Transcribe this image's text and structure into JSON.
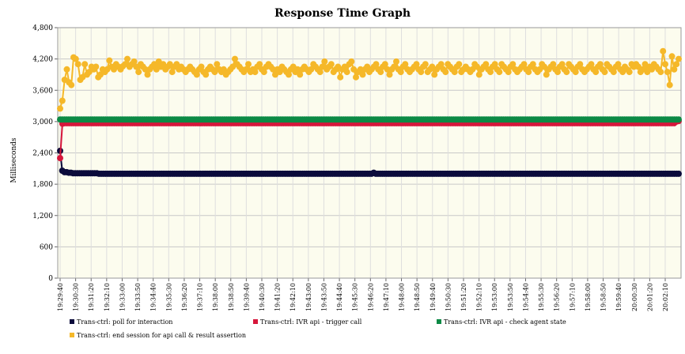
{
  "chart_data": {
    "type": "line",
    "title": "Response Time Graph",
    "ylabel": "Milliseconds",
    "xlabel": "",
    "ylim": [
      0,
      4800
    ],
    "yticks": [
      0,
      600,
      1200,
      1800,
      2400,
      3000,
      3600,
      4200,
      4800
    ],
    "ytick_labels": [
      "0",
      "600",
      "1,200",
      "1,800",
      "2,400",
      "3,000",
      "3,600",
      "4,200",
      "4,800"
    ],
    "x_tick_labels": [
      "19:29:40",
      "19:30:30",
      "19:31:20",
      "19:32:10",
      "19:33:00",
      "19:33:50",
      "19:34:40",
      "19:35:30",
      "19:36:20",
      "19:37:10",
      "19:38:00",
      "19:38:50",
      "19:39:40",
      "19:40:30",
      "19:41:20",
      "19:42:10",
      "19:43:00",
      "19:43:50",
      "19:44:40",
      "19:45:30",
      "19:46:20",
      "19:47:10",
      "19:48:00",
      "19:48:50",
      "19:49:40",
      "19:50:30",
      "19:51:20",
      "19:52:10",
      "19:53:00",
      "19:53:50",
      "19:54:40",
      "19:55:30",
      "19:56:20",
      "19:57:10",
      "19:58:00",
      "19:58:50",
      "19:59:40",
      "20:00:30",
      "20:01:20",
      "20:02:10"
    ],
    "grid": true,
    "legend_position": "bottom",
    "series": [
      {
        "name": "Trans-ctrl: poll for interaction",
        "color": "#0b0b3b",
        "values": [
          2440,
          2060,
          2030,
          2030,
          2020,
          2020,
          2010,
          2010,
          2010,
          2010,
          2010,
          2010,
          2010,
          2010,
          2010,
          2010,
          2010,
          2010,
          2000,
          2000,
          2000,
          2000,
          2000,
          2000,
          2000,
          2000,
          2000,
          2000,
          2000,
          2000,
          2000,
          2000,
          2000,
          2000,
          2000,
          2000,
          2000,
          2000,
          2000,
          2000,
          2000,
          2000,
          2000,
          2000,
          2000,
          2000,
          2000,
          2000,
          2000,
          2000,
          2000,
          2000,
          2000,
          2000,
          2000,
          2000,
          2000,
          2000,
          2000,
          2000,
          2000,
          2000,
          2000,
          2000,
          2000,
          2000,
          2000,
          2000,
          2000,
          2000,
          2000,
          2000,
          2000,
          2000,
          2000,
          2000,
          2000,
          2000,
          2000,
          2000,
          2000,
          2000,
          2000,
          2000,
          2000,
          2000,
          2000,
          2000,
          2000,
          2000,
          2000,
          2000,
          2000,
          2000,
          2000,
          2000,
          2000,
          2000,
          2000,
          2000,
          2000,
          2000,
          2000,
          2000,
          2000,
          2000,
          2000,
          2000,
          2000,
          2000,
          2000,
          2000,
          2000,
          2000,
          2000,
          2000,
          2000,
          2000,
          2000,
          2000,
          2000,
          2000,
          2000,
          2000,
          2000,
          2000,
          2000,
          2000,
          2000,
          2000,
          2000,
          2000,
          2000,
          2000,
          2000,
          2000,
          2000,
          2000,
          2000,
          2000,
          2000,
          2000,
          2000,
          2000,
          2000,
          2020,
          2000,
          2000,
          2000,
          2000,
          2000,
          2000,
          2000,
          2000,
          2000,
          2000,
          2000,
          2000,
          2000,
          2000,
          2000,
          2000,
          2000,
          2000,
          2000,
          2000,
          2000,
          2000,
          2000,
          2000,
          2000,
          2000,
          2000,
          2000,
          2000,
          2000,
          2000,
          2000,
          2000,
          2000,
          2000,
          2000,
          2000,
          2000,
          2000,
          2000,
          2000,
          2000,
          2000,
          2000,
          2000,
          2000,
          2000,
          2000,
          2000,
          2000,
          2000,
          2000,
          2000,
          2000,
          2000,
          2000,
          2000,
          2000,
          2000,
          2000,
          2000,
          2000,
          2000,
          2000,
          2000,
          2000,
          2000,
          2000,
          2000,
          2000,
          2000,
          2000,
          2000,
          2000,
          2000,
          2000,
          2000,
          2000,
          2000,
          2000,
          2000,
          2000,
          2000,
          2000,
          2000,
          2000,
          2000,
          2000,
          2000,
          2000,
          2000,
          2000,
          2000,
          2000,
          2000,
          2000,
          2000,
          2000,
          2000,
          2000,
          2000,
          2000,
          2000,
          2000,
          2000,
          2000,
          2000,
          2000,
          2000,
          2000,
          2000,
          2000,
          2000,
          2000,
          2000,
          2000,
          2000,
          2000,
          2000,
          2000,
          2000,
          2000,
          2000,
          2000,
          2000,
          2000,
          2000,
          2000,
          2000,
          2000,
          2000,
          2000,
          2000,
          2000,
          2000,
          2000,
          2000,
          2000,
          2000,
          2000,
          2000
        ]
      },
      {
        "name": "Trans-ctrl: IVR api - trigger call",
        "color": "#d6163b",
        "values": [
          2300,
          2960,
          2970,
          2970,
          2970,
          2970,
          2970,
          2970,
          2970,
          2970,
          2970,
          2970,
          2970,
          2970,
          2970,
          2970,
          2970,
          2970,
          2970,
          2970,
          2970,
          2970,
          2970,
          2970,
          2970,
          2970,
          2970,
          2970,
          2970,
          2970,
          2970,
          2970,
          2970,
          2970,
          2970,
          2970,
          2970,
          2970,
          2970,
          2970,
          2970,
          2970,
          2970,
          2970,
          2970,
          2970,
          2970,
          2970,
          2970,
          2970,
          2970,
          2970,
          2970,
          2970,
          2970,
          2970,
          2970,
          2970,
          2970,
          2970,
          2970,
          2970,
          2970,
          2970,
          2970,
          2970,
          2970,
          2970,
          2970,
          2970,
          2970,
          2970,
          2970,
          2970,
          2970,
          2970,
          2970,
          2970,
          2970,
          2970,
          2970,
          2970,
          2970,
          2970,
          2970,
          2970,
          2970,
          2970,
          2970,
          2970,
          2970,
          2970,
          2970,
          2970,
          2970,
          2970,
          2970,
          2970,
          2970,
          2970,
          2970,
          2970,
          2970,
          2970,
          2970,
          2970,
          2970,
          2970,
          2970,
          2970,
          2970,
          2970,
          2970,
          2970,
          2970,
          2970,
          2970,
          2970,
          2970,
          2970,
          2970,
          2970,
          2970,
          2970,
          2970,
          2970,
          2970,
          2970,
          2970,
          2970,
          2970,
          2970,
          2970,
          2970,
          2970,
          2970,
          2970,
          2970,
          2970,
          2970,
          2970,
          2970,
          2970,
          2970,
          2970,
          2970,
          2970,
          2970,
          2970,
          2970,
          2970,
          2970,
          2970,
          2970,
          2970,
          2970,
          2970,
          2970,
          2970,
          2970,
          2970,
          2970,
          2970,
          2970,
          2970,
          2970,
          2970,
          2970,
          2970,
          2970,
          2970,
          2970,
          2970,
          2970,
          2970,
          2970,
          2970,
          2970,
          2970,
          2970,
          2970,
          2970,
          2970,
          2970,
          2970,
          2970,
          2970,
          2970,
          2970,
          2970,
          2970,
          2970,
          2970,
          2970,
          2970,
          2970,
          2970,
          2970,
          2970,
          2970,
          2970,
          2970,
          2970,
          2970,
          2970,
          2970,
          2970,
          2970,
          2970,
          2970,
          2970,
          2970,
          2970,
          2970,
          2970,
          2970,
          2970,
          2970,
          2970,
          2970,
          2970,
          2970,
          2970,
          2970,
          2970,
          2970,
          2970,
          2970,
          2970,
          2970,
          2970,
          2970,
          2970,
          2970,
          2970,
          2970,
          2970,
          2970,
          2970,
          2970,
          2970,
          2970,
          2970,
          2970,
          2970,
          2970,
          2970,
          2970,
          2970,
          2970,
          2970,
          2970,
          2970,
          2970,
          2970,
          2970,
          2970,
          2970,
          2970,
          2970,
          2970,
          2970,
          2970,
          2970,
          2970,
          2970,
          2970,
          2970,
          2970,
          2970,
          2970,
          2970,
          2970,
          3000,
          3010
        ]
      },
      {
        "name": "Trans-ctrl: IVR api - check agent state",
        "color": "#0c8a45",
        "values": [
          3040,
          3040,
          3040,
          3040,
          3040,
          3040,
          3040,
          3040,
          3040,
          3040,
          3040,
          3040,
          3040,
          3040,
          3040,
          3040,
          3040,
          3040,
          3040,
          3040,
          3040,
          3040,
          3040,
          3040,
          3040,
          3040,
          3040,
          3040,
          3040,
          3040,
          3040,
          3040,
          3040,
          3040,
          3040,
          3040,
          3040,
          3040,
          3040,
          3040,
          3040,
          3040,
          3040,
          3040,
          3040,
          3040,
          3040,
          3040,
          3040,
          3040,
          3040,
          3040,
          3040,
          3040,
          3040,
          3040,
          3040,
          3040,
          3040,
          3040,
          3040,
          3040,
          3040,
          3040,
          3040,
          3040,
          3040,
          3040,
          3040,
          3040,
          3040,
          3040,
          3040,
          3040,
          3040,
          3040,
          3040,
          3040,
          3040,
          3040,
          3040,
          3040,
          3040,
          3040,
          3040,
          3040,
          3040,
          3040,
          3040,
          3040,
          3040,
          3040,
          3040,
          3040,
          3040,
          3040,
          3040,
          3040,
          3040,
          3040,
          3040,
          3040,
          3040,
          3040,
          3040,
          3040,
          3040,
          3040,
          3040,
          3040,
          3040,
          3040,
          3040,
          3040,
          3040,
          3040,
          3040,
          3040,
          3040,
          3040,
          3040,
          3040,
          3040,
          3040,
          3040,
          3040,
          3040,
          3040,
          3040,
          3040,
          3040,
          3040,
          3040,
          3040,
          3040,
          3040,
          3040,
          3040,
          3040,
          3040,
          3040,
          3040,
          3040,
          3040,
          3040,
          3040,
          3040,
          3040,
          3040,
          3040,
          3040,
          3040,
          3040,
          3040,
          3040,
          3040,
          3040,
          3040,
          3040,
          3040,
          3040,
          3040,
          3040,
          3040,
          3040,
          3040,
          3040,
          3040,
          3040,
          3040,
          3040,
          3040,
          3040,
          3040,
          3040,
          3040,
          3040,
          3040,
          3040,
          3040,
          3040,
          3040,
          3040,
          3040,
          3040,
          3040,
          3040,
          3040,
          3040,
          3040,
          3040,
          3040,
          3040,
          3040,
          3040,
          3040,
          3040,
          3040,
          3040,
          3040,
          3040,
          3040,
          3040,
          3040,
          3040,
          3040,
          3040,
          3040,
          3040,
          3040,
          3040,
          3040,
          3040,
          3040,
          3040,
          3040,
          3040,
          3040,
          3040,
          3040,
          3040,
          3040,
          3040,
          3040,
          3040,
          3040,
          3040,
          3040,
          3040,
          3040,
          3040,
          3040,
          3040,
          3040,
          3040,
          3040,
          3040,
          3040,
          3040,
          3040,
          3040,
          3040,
          3040,
          3040,
          3040,
          3040,
          3040,
          3040,
          3040,
          3040,
          3040,
          3040,
          3040,
          3040,
          3040,
          3040,
          3040,
          3040,
          3040,
          3040,
          3040,
          3040,
          3040,
          3040,
          3040,
          3040,
          3040,
          3040,
          3040,
          3040,
          3040,
          3040,
          3040,
          3040,
          3040,
          3040,
          3040,
          3040,
          3040,
          3040,
          3040,
          3040,
          3040,
          3040,
          3040,
          3040,
          3040
        ]
      },
      {
        "name": "Trans-ctrl: end session for api call & result assertion",
        "color": "#f5b829",
        "values": [
          3250,
          3400,
          3800,
          4000,
          3750,
          3700,
          4230,
          4200,
          4100,
          3800,
          3850,
          4100,
          3900,
          3950,
          4050,
          4000,
          4050,
          3850,
          3900,
          4000,
          3950,
          4000,
          4170,
          4050,
          4000,
          4100,
          4050,
          4000,
          4060,
          4100,
          4200,
          4050,
          4100,
          4150,
          4050,
          3950,
          4100,
          4050,
          4000,
          3900,
          4000,
          4050,
          4100,
          4000,
          4150,
          4050,
          4100,
          4000,
          4050,
          4100,
          3950,
          4050,
          4100,
          4000,
          4050,
          4000,
          3950,
          4000,
          4050,
          4000,
          3950,
          3900,
          4000,
          4050,
          3950,
          3900,
          4000,
          4050,
          4000,
          3950,
          4100,
          4000,
          3950,
          4000,
          3900,
          3950,
          4000,
          4050,
          4200,
          4100,
          4050,
          4000,
          3950,
          4000,
          4100,
          3950,
          4000,
          3950,
          4050,
          4100,
          4000,
          3950,
          4050,
          4100,
          4050,
          4000,
          3900,
          4000,
          3950,
          4050,
          4000,
          3950,
          3900,
          4000,
          4050,
          3950,
          4000,
          3900,
          4000,
          4050,
          4000,
          3950,
          4000,
          4100,
          4050,
          4000,
          3950,
          4050,
          4150,
          4000,
          4050,
          4100,
          3950,
          4000,
          4050,
          3850,
          4000,
          4050,
          3950,
          4100,
          4150,
          4000,
          3850,
          3950,
          4000,
          3900,
          4000,
          4050,
          3950,
          4000,
          4050,
          4100,
          4000,
          3950,
          4050,
          4100,
          4000,
          3900,
          4000,
          4050,
          4150,
          4000,
          3950,
          4050,
          4100,
          4000,
          3950,
          4000,
          4050,
          4100,
          4000,
          3950,
          4050,
          4100,
          3950,
          4000,
          4050,
          3900,
          4000,
          4050,
          4100,
          4000,
          3950,
          4100,
          4050,
          4000,
          3950,
          4050,
          4100,
          3950,
          4000,
          4050,
          4000,
          3950,
          4000,
          4100,
          4050,
          3900,
          4000,
          4050,
          4100,
          4000,
          3950,
          4050,
          4100,
          4000,
          3950,
          4100,
          4050,
          4000,
          3950,
          4050,
          4100,
          4000,
          3950,
          4000,
          4050,
          4100,
          4000,
          3950,
          4050,
          4100,
          4000,
          3950,
          4000,
          4100,
          4050,
          3900,
          4000,
          4050,
          4100,
          4000,
          3950,
          4050,
          4100,
          4000,
          3950,
          4100,
          4050,
          4000,
          3950,
          4050,
          4100,
          4000,
          3950,
          4000,
          4050,
          4100,
          4000,
          3950,
          4050,
          4100,
          4000,
          3950,
          4100,
          4050,
          4000,
          3950,
          4050,
          4100,
          4000,
          3950,
          4050,
          4000,
          3950,
          4100,
          4050,
          4100,
          4050,
          3950,
          4000,
          4100,
          3950,
          4050,
          4000,
          4100,
          4050,
          4000,
          3950,
          4350,
          4100,
          3950,
          3700,
          4250,
          4000,
          4100,
          4200
        ]
      }
    ]
  }
}
